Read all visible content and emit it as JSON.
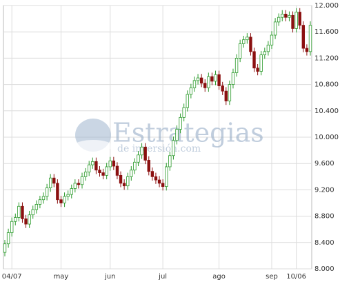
{
  "chart_data": {
    "type": "candlestick",
    "annotations": [
      "Estrategias",
      "de inversión.com"
    ],
    "categories": [
      null,
      null,
      "04/07",
      null,
      null,
      null,
      null,
      null,
      null,
      null,
      null,
      null,
      null,
      null,
      null,
      null,
      "may",
      null,
      null,
      null,
      null,
      null,
      null,
      null,
      null,
      null,
      null,
      null,
      null,
      null,
      "jun",
      null,
      null,
      null,
      null,
      null,
      null,
      null,
      null,
      null,
      null,
      null,
      null,
      null,
      null,
      "jul",
      null,
      null,
      null,
      null,
      null,
      null,
      null,
      null,
      null,
      null,
      null,
      null,
      null,
      null,
      null,
      "ago",
      null,
      null,
      null,
      null,
      null,
      null,
      null,
      null,
      null,
      null,
      null,
      null,
      null,
      null,
      "sep",
      null,
      null,
      null,
      null,
      null,
      null,
      "10/06",
      null,
      null,
      null,
      null
    ],
    "open": [
      8250,
      8380,
      8550,
      8720,
      8780,
      8950,
      8760,
      8680,
      8820,
      8900,
      8980,
      9050,
      9100,
      9230,
      9380,
      9300,
      9050,
      9000,
      9100,
      9130,
      9220,
      9300,
      9280,
      9400,
      9470,
      9580,
      9630,
      9500,
      9460,
      9420,
      9550,
      9640,
      9560,
      9420,
      9300,
      9260,
      9400,
      9500,
      9620,
      9730,
      9850,
      9650,
      9480,
      9400,
      9350,
      9300,
      9250,
      9550,
      9720,
      9950,
      10120,
      10300,
      10450,
      10650,
      10750,
      10860,
      10900,
      10820,
      10750,
      10920,
      10850,
      10950,
      10780,
      10700,
      10550,
      10800,
      10980,
      11200,
      11420,
      11480,
      11520,
      11300,
      11050,
      11000,
      11250,
      11300,
      11400,
      11550,
      11750,
      11820,
      11870,
      11820,
      11850,
      11650,
      11900,
      11700,
      11350,
      11300
    ],
    "high": [
      8440,
      8610,
      8780,
      8840,
      9010,
      9010,
      8820,
      8880,
      8960,
      9040,
      9110,
      9160,
      9290,
      9440,
      9440,
      9360,
      9110,
      9160,
      9190,
      9280,
      9360,
      9360,
      9460,
      9530,
      9640,
      9690,
      9690,
      9560,
      9520,
      9610,
      9700,
      9700,
      9620,
      9480,
      9360,
      9460,
      9560,
      9680,
      9790,
      9910,
      9910,
      9710,
      9540,
      9460,
      9410,
      9360,
      9610,
      9780,
      10010,
      10180,
      10360,
      10510,
      10710,
      10810,
      10920,
      10960,
      10960,
      10880,
      10980,
      10980,
      11010,
      11010,
      10840,
      10760,
      10860,
      11040,
      11260,
      11480,
      11540,
      11580,
      11580,
      11360,
      11110,
      11310,
      11360,
      11460,
      11610,
      11810,
      11880,
      11930,
      11930,
      11910,
      11910,
      11960,
      11960,
      11760,
      11410,
      11760
    ],
    "low": [
      8190,
      8320,
      8490,
      8660,
      8720,
      8700,
      8620,
      8620,
      8760,
      8840,
      8920,
      8990,
      9040,
      9170,
      9240,
      8990,
      8940,
      8940,
      9040,
      9070,
      9160,
      9220,
      9220,
      9340,
      9410,
      9520,
      9440,
      9400,
      9360,
      9360,
      9490,
      9500,
      9360,
      9240,
      9200,
      9200,
      9340,
      9440,
      9560,
      9670,
      9590,
      9420,
      9340,
      9290,
      9240,
      9190,
      9190,
      9490,
      9660,
      9890,
      10060,
      10240,
      10390,
      10590,
      10690,
      10800,
      10760,
      10690,
      10690,
      10790,
      10790,
      10720,
      10640,
      10490,
      10490,
      10740,
      10920,
      11140,
      11360,
      11420,
      11240,
      10990,
      10940,
      10940,
      11190,
      11240,
      11340,
      11490,
      11690,
      11760,
      11760,
      11760,
      11590,
      11590,
      11640,
      11290,
      11240,
      11240
    ],
    "close": [
      8380,
      8550,
      8720,
      8780,
      8950,
      8760,
      8680,
      8820,
      8900,
      8980,
      9050,
      9100,
      9230,
      9380,
      9300,
      9050,
      9000,
      9100,
      9130,
      9220,
      9300,
      9280,
      9400,
      9470,
      9580,
      9630,
      9500,
      9460,
      9420,
      9550,
      9640,
      9560,
      9420,
      9300,
      9260,
      9400,
      9500,
      9620,
      9730,
      9850,
      9650,
      9480,
      9400,
      9350,
      9300,
      9250,
      9550,
      9720,
      9950,
      10120,
      10300,
      10450,
      10650,
      10750,
      10860,
      10900,
      10820,
      10750,
      10920,
      10850,
      10950,
      10780,
      10700,
      10550,
      10800,
      10980,
      11200,
      11420,
      11480,
      11520,
      11300,
      11050,
      11000,
      11250,
      11300,
      11400,
      11550,
      11750,
      11820,
      11870,
      11820,
      11850,
      11650,
      11900,
      11700,
      11350,
      11300,
      11700
    ],
    "up_color": "#2a9a2a",
    "down_color": "#8b1010",
    "ylim": [
      8000,
      12000
    ],
    "yticks": [
      {
        "value": 8000,
        "label": "8.000"
      },
      {
        "value": 8400,
        "label": "8.400"
      },
      {
        "value": 8800,
        "label": "8.800"
      },
      {
        "value": 9200,
        "label": "9.200"
      },
      {
        "value": 9600,
        "label": "9.600"
      },
      {
        "value": 10000,
        "label": "10.000"
      },
      {
        "value": 10400,
        "label": "10.400"
      },
      {
        "value": 10800,
        "label": "10.800"
      },
      {
        "value": 11200,
        "label": "11.200"
      },
      {
        "value": 11600,
        "label": "11.600"
      },
      {
        "value": 12000,
        "label": "12.000"
      }
    ],
    "grid": true
  }
}
